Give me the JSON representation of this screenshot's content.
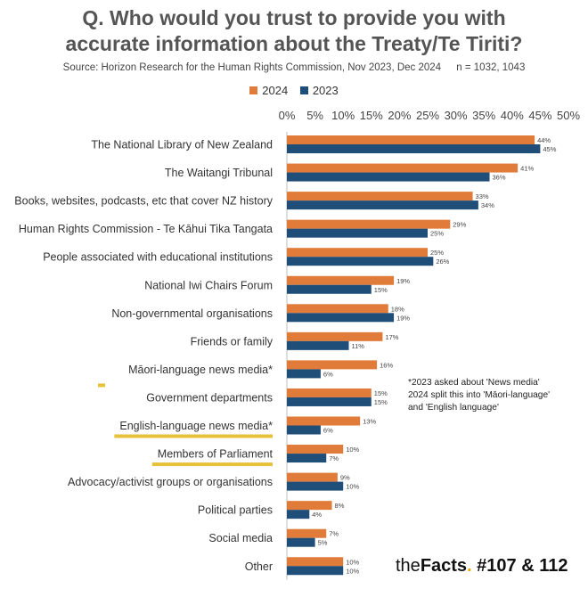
{
  "header": {
    "title_line1": "Q. Who would you trust to provide you with",
    "title_line2": "accurate information about the Treaty/Te Tiriti?",
    "source": "Source: Horizon Research for the Human Rights Commission, Nov 2023, Dec 2024",
    "sample": "n = 1032, 1043"
  },
  "note": {
    "line1": "*2023 asked about 'News media'",
    "line2": "2024 split this into 'Māori-language'",
    "line3": "and 'English language'"
  },
  "brand": {
    "the": "the",
    "facts": "Facts",
    "dot": ".",
    "issue": " #107 & 112"
  },
  "colors": {
    "s2024": "#e07b39",
    "s2023": "#1f4e79",
    "highlight": "#e8c13a"
  },
  "chart_data": {
    "type": "bar",
    "orientation": "horizontal",
    "legend_position": "top",
    "xlim": [
      0,
      50
    ],
    "ticks": [
      "0%",
      "5%",
      "10%",
      "15%",
      "20%",
      "25%",
      "30%",
      "35%",
      "40%",
      "45%",
      "50%"
    ],
    "highlighted": [
      "Māori-language news media*",
      "English-language news media*",
      "Members of Parliament"
    ],
    "categories": [
      "The National Library of New Zealand",
      "The Waitangi Tribunal",
      "Books, websites, podcasts, etc that cover NZ history",
      "Human Rights Commission - Te Kāhui Tika Tangata",
      "People associated with educational institutions",
      "National Iwi Chairs Forum",
      "Non-governmental organisations",
      "Friends or family",
      "Māori-language news media*",
      "Government departments",
      "English-language news media*",
      "Members of Parliament",
      "Advocacy/activist groups or organisations",
      "Political parties",
      "Social media",
      "Other"
    ],
    "series": [
      {
        "name": "2024",
        "values": [
          44,
          41,
          33,
          29,
          25,
          19,
          18,
          17,
          16,
          15,
          13,
          10,
          9,
          8,
          7,
          10
        ],
        "labels": [
          "44%",
          "41%",
          "33%",
          "29%",
          "25%",
          "19%",
          "18%",
          "17%",
          "16%",
          "15%",
          "13%",
          "10%",
          "9%",
          "8%",
          "7%",
          "10%"
        ]
      },
      {
        "name": "2023",
        "values": [
          45,
          36,
          34,
          25,
          26,
          15,
          19,
          11,
          6,
          15,
          6,
          7,
          10,
          4,
          5,
          10
        ],
        "labels": [
          "45%",
          "36%",
          "34%",
          "25%",
          "26%",
          "15%",
          "19%",
          "11%",
          "6%",
          "15%",
          "6%",
          "7%",
          "10%",
          "4%",
          "5%",
          "10%"
        ]
      }
    ]
  }
}
